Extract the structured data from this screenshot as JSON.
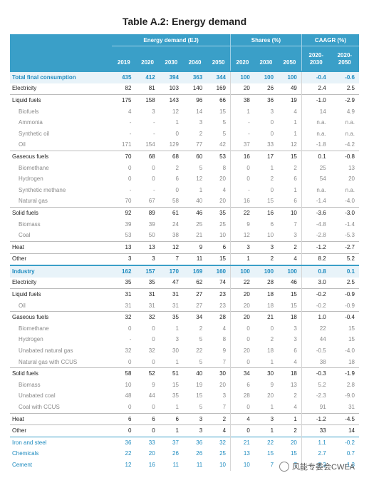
{
  "title": "Table A.2: Energy demand",
  "headers": {
    "energy_demand": "Energy demand (EJ)",
    "shares": "Shares (%)",
    "caagr": "CAAGR (%)",
    "years": [
      "2019",
      "2020",
      "2030",
      "2040",
      "2050"
    ],
    "share_years": [
      "2020",
      "2030",
      "2050"
    ],
    "caagr_periods": [
      [
        "2020-",
        "2030"
      ],
      [
        "2020-",
        "2050"
      ]
    ]
  },
  "rows": [
    {
      "type": "section",
      "label": "Total final consumption",
      "ed": [
        "435",
        "412",
        "394",
        "363",
        "344"
      ],
      "sh": [
        "100",
        "100",
        "100"
      ],
      "cg": [
        "-0.4",
        "-0.6"
      ]
    },
    {
      "type": "main",
      "label": "Electricity",
      "ed": [
        "82",
        "81",
        "103",
        "140",
        "169"
      ],
      "sh": [
        "20",
        "26",
        "49"
      ],
      "cg": [
        "2.4",
        "2.5"
      ]
    },
    {
      "type": "main",
      "label": "Liquid fuels",
      "ed": [
        "175",
        "158",
        "143",
        "96",
        "66"
      ],
      "sh": [
        "38",
        "36",
        "19"
      ],
      "cg": [
        "-1.0",
        "-2.9"
      ]
    },
    {
      "type": "sub",
      "label": "Biofuels",
      "ed": [
        "4",
        "3",
        "12",
        "14",
        "15"
      ],
      "sh": [
        "1",
        "3",
        "4"
      ],
      "cg": [
        "14",
        "4.9"
      ]
    },
    {
      "type": "sub",
      "label": "Ammonia",
      "ed": [
        "-",
        "-",
        "1",
        "3",
        "5"
      ],
      "sh": [
        "-",
        "0",
        "1"
      ],
      "cg": [
        "n.a.",
        "n.a."
      ]
    },
    {
      "type": "sub",
      "label": "Synthetic oil",
      "ed": [
        "-",
        "-",
        "0",
        "2",
        "5"
      ],
      "sh": [
        "-",
        "0",
        "1"
      ],
      "cg": [
        "n.a.",
        "n.a."
      ]
    },
    {
      "type": "sub",
      "label": "Oil",
      "ed": [
        "171",
        "154",
        "129",
        "77",
        "42"
      ],
      "sh": [
        "37",
        "33",
        "12"
      ],
      "cg": [
        "-1.8",
        "-4.2"
      ]
    },
    {
      "type": "main",
      "label": "Gaseous fuels",
      "ed": [
        "70",
        "68",
        "68",
        "60",
        "53"
      ],
      "sh": [
        "16",
        "17",
        "15"
      ],
      "cg": [
        "0.1",
        "-0.8"
      ]
    },
    {
      "type": "sub",
      "label": "Biomethane",
      "ed": [
        "0",
        "0",
        "2",
        "5",
        "8"
      ],
      "sh": [
        "0",
        "1",
        "2"
      ],
      "cg": [
        "25",
        "13"
      ]
    },
    {
      "type": "sub",
      "label": "Hydrogen",
      "ed": [
        "0",
        "0",
        "6",
        "12",
        "20"
      ],
      "sh": [
        "0",
        "2",
        "6"
      ],
      "cg": [
        "54",
        "20"
      ]
    },
    {
      "type": "sub",
      "label": "Synthetic methane",
      "ed": [
        "-",
        "-",
        "0",
        "1",
        "4"
      ],
      "sh": [
        "-",
        "0",
        "1"
      ],
      "cg": [
        "n.a.",
        "n.a."
      ]
    },
    {
      "type": "sub",
      "label": "Natural gas",
      "ed": [
        "70",
        "67",
        "58",
        "40",
        "20"
      ],
      "sh": [
        "16",
        "15",
        "6"
      ],
      "cg": [
        "-1.4",
        "-4.0"
      ]
    },
    {
      "type": "main",
      "label": "Solid fuels",
      "ed": [
        "92",
        "89",
        "61",
        "46",
        "35"
      ],
      "sh": [
        "22",
        "16",
        "10"
      ],
      "cg": [
        "-3.6",
        "-3.0"
      ]
    },
    {
      "type": "sub",
      "label": "Biomass",
      "ed": [
        "39",
        "39",
        "24",
        "25",
        "25"
      ],
      "sh": [
        "9",
        "6",
        "7"
      ],
      "cg": [
        "-4.8",
        "-1.4"
      ]
    },
    {
      "type": "sub",
      "label": "Coal",
      "ed": [
        "53",
        "50",
        "38",
        "21",
        "10"
      ],
      "sh": [
        "12",
        "10",
        "3"
      ],
      "cg": [
        "-2.8",
        "-5.3"
      ]
    },
    {
      "type": "main",
      "label": "Heat",
      "ed": [
        "13",
        "13",
        "12",
        "9",
        "6"
      ],
      "sh": [
        "3",
        "3",
        "2"
      ],
      "cg": [
        "-1.2",
        "-2.7"
      ]
    },
    {
      "type": "main",
      "label": "Other",
      "ed": [
        "3",
        "3",
        "7",
        "11",
        "15"
      ],
      "sh": [
        "1",
        "2",
        "4"
      ],
      "cg": [
        "8.2",
        "5.2"
      ]
    },
    {
      "type": "section",
      "label": "Industry",
      "ed": [
        "162",
        "157",
        "170",
        "169",
        "160"
      ],
      "sh": [
        "100",
        "100",
        "100"
      ],
      "cg": [
        "0.8",
        "0.1"
      ]
    },
    {
      "type": "main",
      "label": "Electricity",
      "ed": [
        "35",
        "35",
        "47",
        "62",
        "74"
      ],
      "sh": [
        "22",
        "28",
        "46"
      ],
      "cg": [
        "3.0",
        "2.5"
      ]
    },
    {
      "type": "main",
      "label": "Liquid fuels",
      "ed": [
        "31",
        "31",
        "31",
        "27",
        "23"
      ],
      "sh": [
        "20",
        "18",
        "15"
      ],
      "cg": [
        "-0.2",
        "-0.9"
      ]
    },
    {
      "type": "sub",
      "label": "Oil",
      "ed": [
        "31",
        "31",
        "31",
        "27",
        "23"
      ],
      "sh": [
        "20",
        "18",
        "15"
      ],
      "cg": [
        "-0.2",
        "-0.9"
      ]
    },
    {
      "type": "main",
      "label": "Gaseous fuels",
      "ed": [
        "32",
        "32",
        "35",
        "34",
        "28"
      ],
      "sh": [
        "20",
        "21",
        "18"
      ],
      "cg": [
        "1.0",
        "-0.4"
      ]
    },
    {
      "type": "sub",
      "label": "Biomethane",
      "ed": [
        "0",
        "0",
        "1",
        "2",
        "4"
      ],
      "sh": [
        "0",
        "0",
        "3"
      ],
      "cg": [
        "22",
        "15"
      ]
    },
    {
      "type": "sub",
      "label": "Hydrogen",
      "ed": [
        "-",
        "0",
        "3",
        "5",
        "8"
      ],
      "sh": [
        "0",
        "2",
        "3"
      ],
      "cg": [
        "44",
        "15"
      ]
    },
    {
      "type": "sub",
      "label": "Unabated natural gas",
      "ed": [
        "32",
        "32",
        "30",
        "22",
        "9"
      ],
      "sh": [
        "20",
        "18",
        "6"
      ],
      "cg": [
        "-0.5",
        "-4.0"
      ]
    },
    {
      "type": "sub",
      "label": "Natural gas with CCUS",
      "ed": [
        "0",
        "0",
        "1",
        "5",
        "7"
      ],
      "sh": [
        "0",
        "1",
        "4"
      ],
      "cg": [
        "38",
        "18"
      ]
    },
    {
      "type": "main",
      "label": "Solid fuels",
      "ed": [
        "58",
        "52",
        "51",
        "40",
        "30"
      ],
      "sh": [
        "34",
        "30",
        "18"
      ],
      "cg": [
        "-0.3",
        "-1.9"
      ]
    },
    {
      "type": "sub",
      "label": "Biomass",
      "ed": [
        "10",
        "9",
        "15",
        "19",
        "20"
      ],
      "sh": [
        "6",
        "9",
        "13"
      ],
      "cg": [
        "5.2",
        "2.8"
      ]
    },
    {
      "type": "sub",
      "label": "Unabated coal",
      "ed": [
        "48",
        "44",
        "35",
        "15",
        "3"
      ],
      "sh": [
        "28",
        "20",
        "2"
      ],
      "cg": [
        "-2.3",
        "-9.0"
      ]
    },
    {
      "type": "sub",
      "label": "Coal with CCUS",
      "ed": [
        "0",
        "0",
        "1",
        "5",
        "7"
      ],
      "sh": [
        "0",
        "1",
        "4"
      ],
      "cg": [
        "91",
        "31"
      ]
    },
    {
      "type": "main",
      "label": "Heat",
      "ed": [
        "6",
        "6",
        "6",
        "3",
        "2"
      ],
      "sh": [
        "4",
        "3",
        "1"
      ],
      "cg": [
        "-1.2",
        "-4.5"
      ]
    },
    {
      "type": "main",
      "label": "Other",
      "ed": [
        "0",
        "0",
        "1",
        "3",
        "4"
      ],
      "sh": [
        "0",
        "1",
        "2"
      ],
      "cg": [
        "33",
        "14"
      ]
    },
    {
      "type": "sector",
      "label": "Iron and steel",
      "ed": [
        "36",
        "33",
        "37",
        "36",
        "32"
      ],
      "sh": [
        "21",
        "22",
        "20"
      ],
      "cg": [
        "1.1",
        "-0.2"
      ]
    },
    {
      "type": "sectorb",
      "label": "Chemicals",
      "ed": [
        "22",
        "20",
        "26",
        "26",
        "25"
      ],
      "sh": [
        "13",
        "15",
        "15"
      ],
      "cg": [
        "2.7",
        "0.7"
      ]
    },
    {
      "type": "sectorb",
      "label": "Cement",
      "ed": [
        "12",
        "16",
        "11",
        "11",
        "10"
      ],
      "sh": [
        "10",
        "7",
        "7"
      ],
      "cg": [
        "-3.3",
        "-1.3"
      ]
    }
  ],
  "watermark": "风能专委会CWEA"
}
